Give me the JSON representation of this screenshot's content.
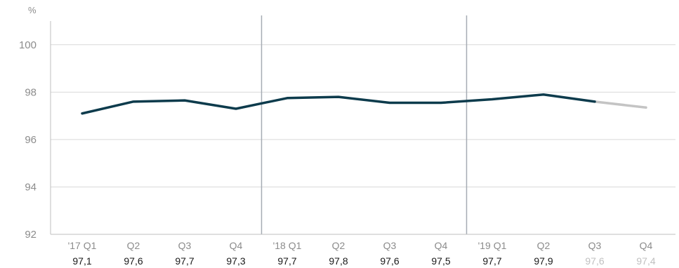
{
  "chart_data": {
    "type": "line",
    "unit_label": "%",
    "ylim": [
      92,
      101
    ],
    "yticks": [
      92,
      94,
      96,
      98,
      100
    ],
    "grid": true,
    "categories": [
      "'17 Q1",
      "Q2",
      "Q3",
      "Q4",
      "'18 Q1",
      "Q2",
      "Q3",
      "Q4",
      "'19 Q1",
      "Q2",
      "Q3",
      "Q4"
    ],
    "value_labels": [
      "97,1",
      "97,6",
      "97,7",
      "97,3",
      "97,7",
      "97,8",
      "97,6",
      "97,5",
      "97,7",
      "97,9",
      "97,6",
      "97,4"
    ],
    "series": [
      {
        "values": [
          97.1,
          97.6,
          97.65,
          97.3,
          97.75,
          97.8,
          97.55,
          97.55,
          97.7,
          97.9,
          97.6,
          97.35
        ],
        "actual_count": 11,
        "color": "#0d3b4c",
        "projection_color": "#c4c4c4"
      }
    ],
    "year_separators_after": [
      3,
      7
    ],
    "projected_categories": [
      10,
      11
    ]
  }
}
